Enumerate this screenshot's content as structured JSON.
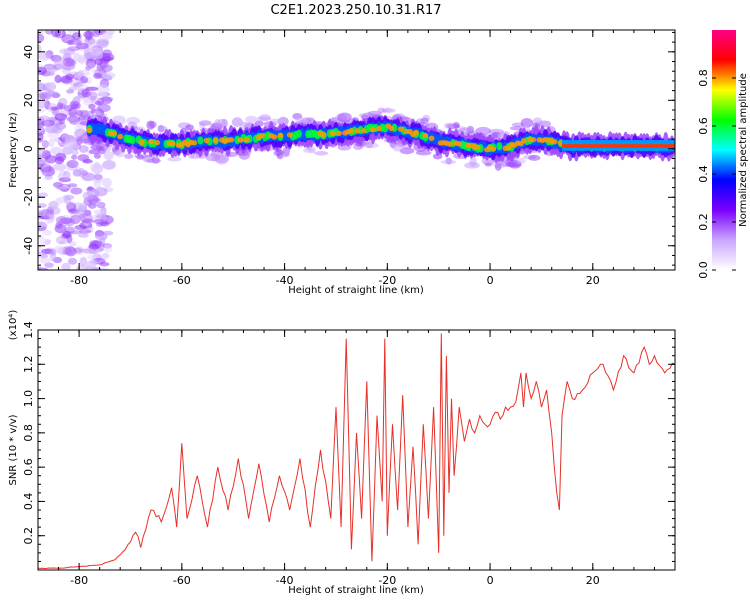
{
  "title": "C2E1.2023.250.10.31.R17",
  "chart_data": [
    {
      "type": "heatmap",
      "xlabel": "Height of straight line (km)",
      "ylabel": "Frequency (Hz)",
      "xlim": [
        -88,
        36
      ],
      "ylim": [
        -50,
        49
      ],
      "x_ticks": [
        "-80",
        "-60",
        "-40",
        "-20",
        "0",
        "20"
      ],
      "y_ticks": [
        "-40",
        "-20",
        "0",
        "20",
        "40"
      ],
      "colorbar": {
        "label": "Normalized spectral amplitude",
        "range": [
          0.0,
          1.0
        ],
        "ticks": [
          "0.0",
          "0.2",
          "0.4",
          "0.6",
          "0.8"
        ],
        "colors": [
          "#ffffff",
          "#c9a6ff",
          "#7a00ff",
          "#0000ff",
          "#00ffff",
          "#00ff00",
          "#ffff00",
          "#ff0000",
          "#ff0088"
        ]
      },
      "ridge": {
        "x": [
          -76,
          -72,
          -68,
          -64,
          -60,
          -56,
          -52,
          -48,
          -44,
          -40,
          -36,
          -32,
          -28,
          -24,
          -20,
          -18,
          -14,
          -10,
          -6,
          -4,
          0,
          4,
          8,
          12,
          16,
          20,
          24,
          28,
          32,
          35
        ],
        "y": [
          8,
          5,
          3,
          2,
          2,
          3,
          3,
          4,
          5,
          5,
          6,
          6,
          7,
          8,
          9,
          8,
          6,
          3,
          2,
          1,
          0,
          1,
          4,
          3,
          1,
          1,
          1,
          1,
          1,
          1
        ]
      }
    },
    {
      "type": "line",
      "xlabel": "Height of straight line (km)",
      "ylabel": "SNR (10 * v/v)",
      "y_multiplier": "(x10⁴)",
      "xlim": [
        -88,
        36
      ],
      "ylim": [
        0.0,
        1.4
      ],
      "x_ticks": [
        "-80",
        "-60",
        "-40",
        "-20",
        "0",
        "20"
      ],
      "y_ticks": [
        "0.2",
        "0.4",
        "0.6",
        "0.8",
        "1.0",
        "1.2",
        "1.4"
      ],
      "series": [
        {
          "color": "#e8302a",
          "x": [
            -88,
            -84,
            -80,
            -76,
            -73,
            -71,
            -69,
            -68,
            -66,
            -64,
            -62,
            -61,
            -60,
            -59,
            -57,
            -55,
            -53,
            -51,
            -49,
            -47,
            -45,
            -43,
            -41,
            -39,
            -37,
            -35,
            -33,
            -31,
            -30,
            -29,
            -28,
            -27,
            -26,
            -25,
            -24,
            -23,
            -22,
            -21,
            -20.5,
            -20,
            -19,
            -18,
            -17,
            -16,
            -15,
            -14,
            -13,
            -12,
            -11,
            -10,
            -9.5,
            -9,
            -8.5,
            -8,
            -7.5,
            -7,
            -6,
            -5,
            -4,
            -3,
            -2,
            -1,
            0,
            1,
            2,
            3,
            4,
            5,
            6,
            6.5,
            7,
            8,
            9,
            10,
            11,
            12,
            12.5,
            13,
            13.5,
            14,
            15,
            16,
            18,
            20,
            22,
            24,
            26,
            28,
            30,
            31,
            32,
            34,
            36
          ],
          "y": [
            0.01,
            0.01,
            0.02,
            0.03,
            0.06,
            0.12,
            0.22,
            0.13,
            0.35,
            0.28,
            0.48,
            0.25,
            0.74,
            0.3,
            0.55,
            0.25,
            0.6,
            0.35,
            0.65,
            0.3,
            0.62,
            0.28,
            0.55,
            0.35,
            0.65,
            0.25,
            0.7,
            0.3,
            0.95,
            0.25,
            1.35,
            0.12,
            0.8,
            0.3,
            1.1,
            0.05,
            0.9,
            0.4,
            1.35,
            0.2,
            0.85,
            0.35,
            1.02,
            0.25,
            0.72,
            0.15,
            0.85,
            0.3,
            0.95,
            0.1,
            1.38,
            0.2,
            1.25,
            0.45,
            1.0,
            0.55,
            0.95,
            0.75,
            0.88,
            0.8,
            0.9,
            0.85,
            0.85,
            0.92,
            0.88,
            0.95,
            0.95,
            0.98,
            1.15,
            0.95,
            1.15,
            1.0,
            1.1,
            0.95,
            1.05,
            0.8,
            0.6,
            0.45,
            0.35,
            0.9,
            1.1,
            1.0,
            1.05,
            1.15,
            1.2,
            1.05,
            1.25,
            1.15,
            1.3,
            1.2,
            1.25,
            1.15,
            1.2
          ]
        }
      ]
    }
  ]
}
